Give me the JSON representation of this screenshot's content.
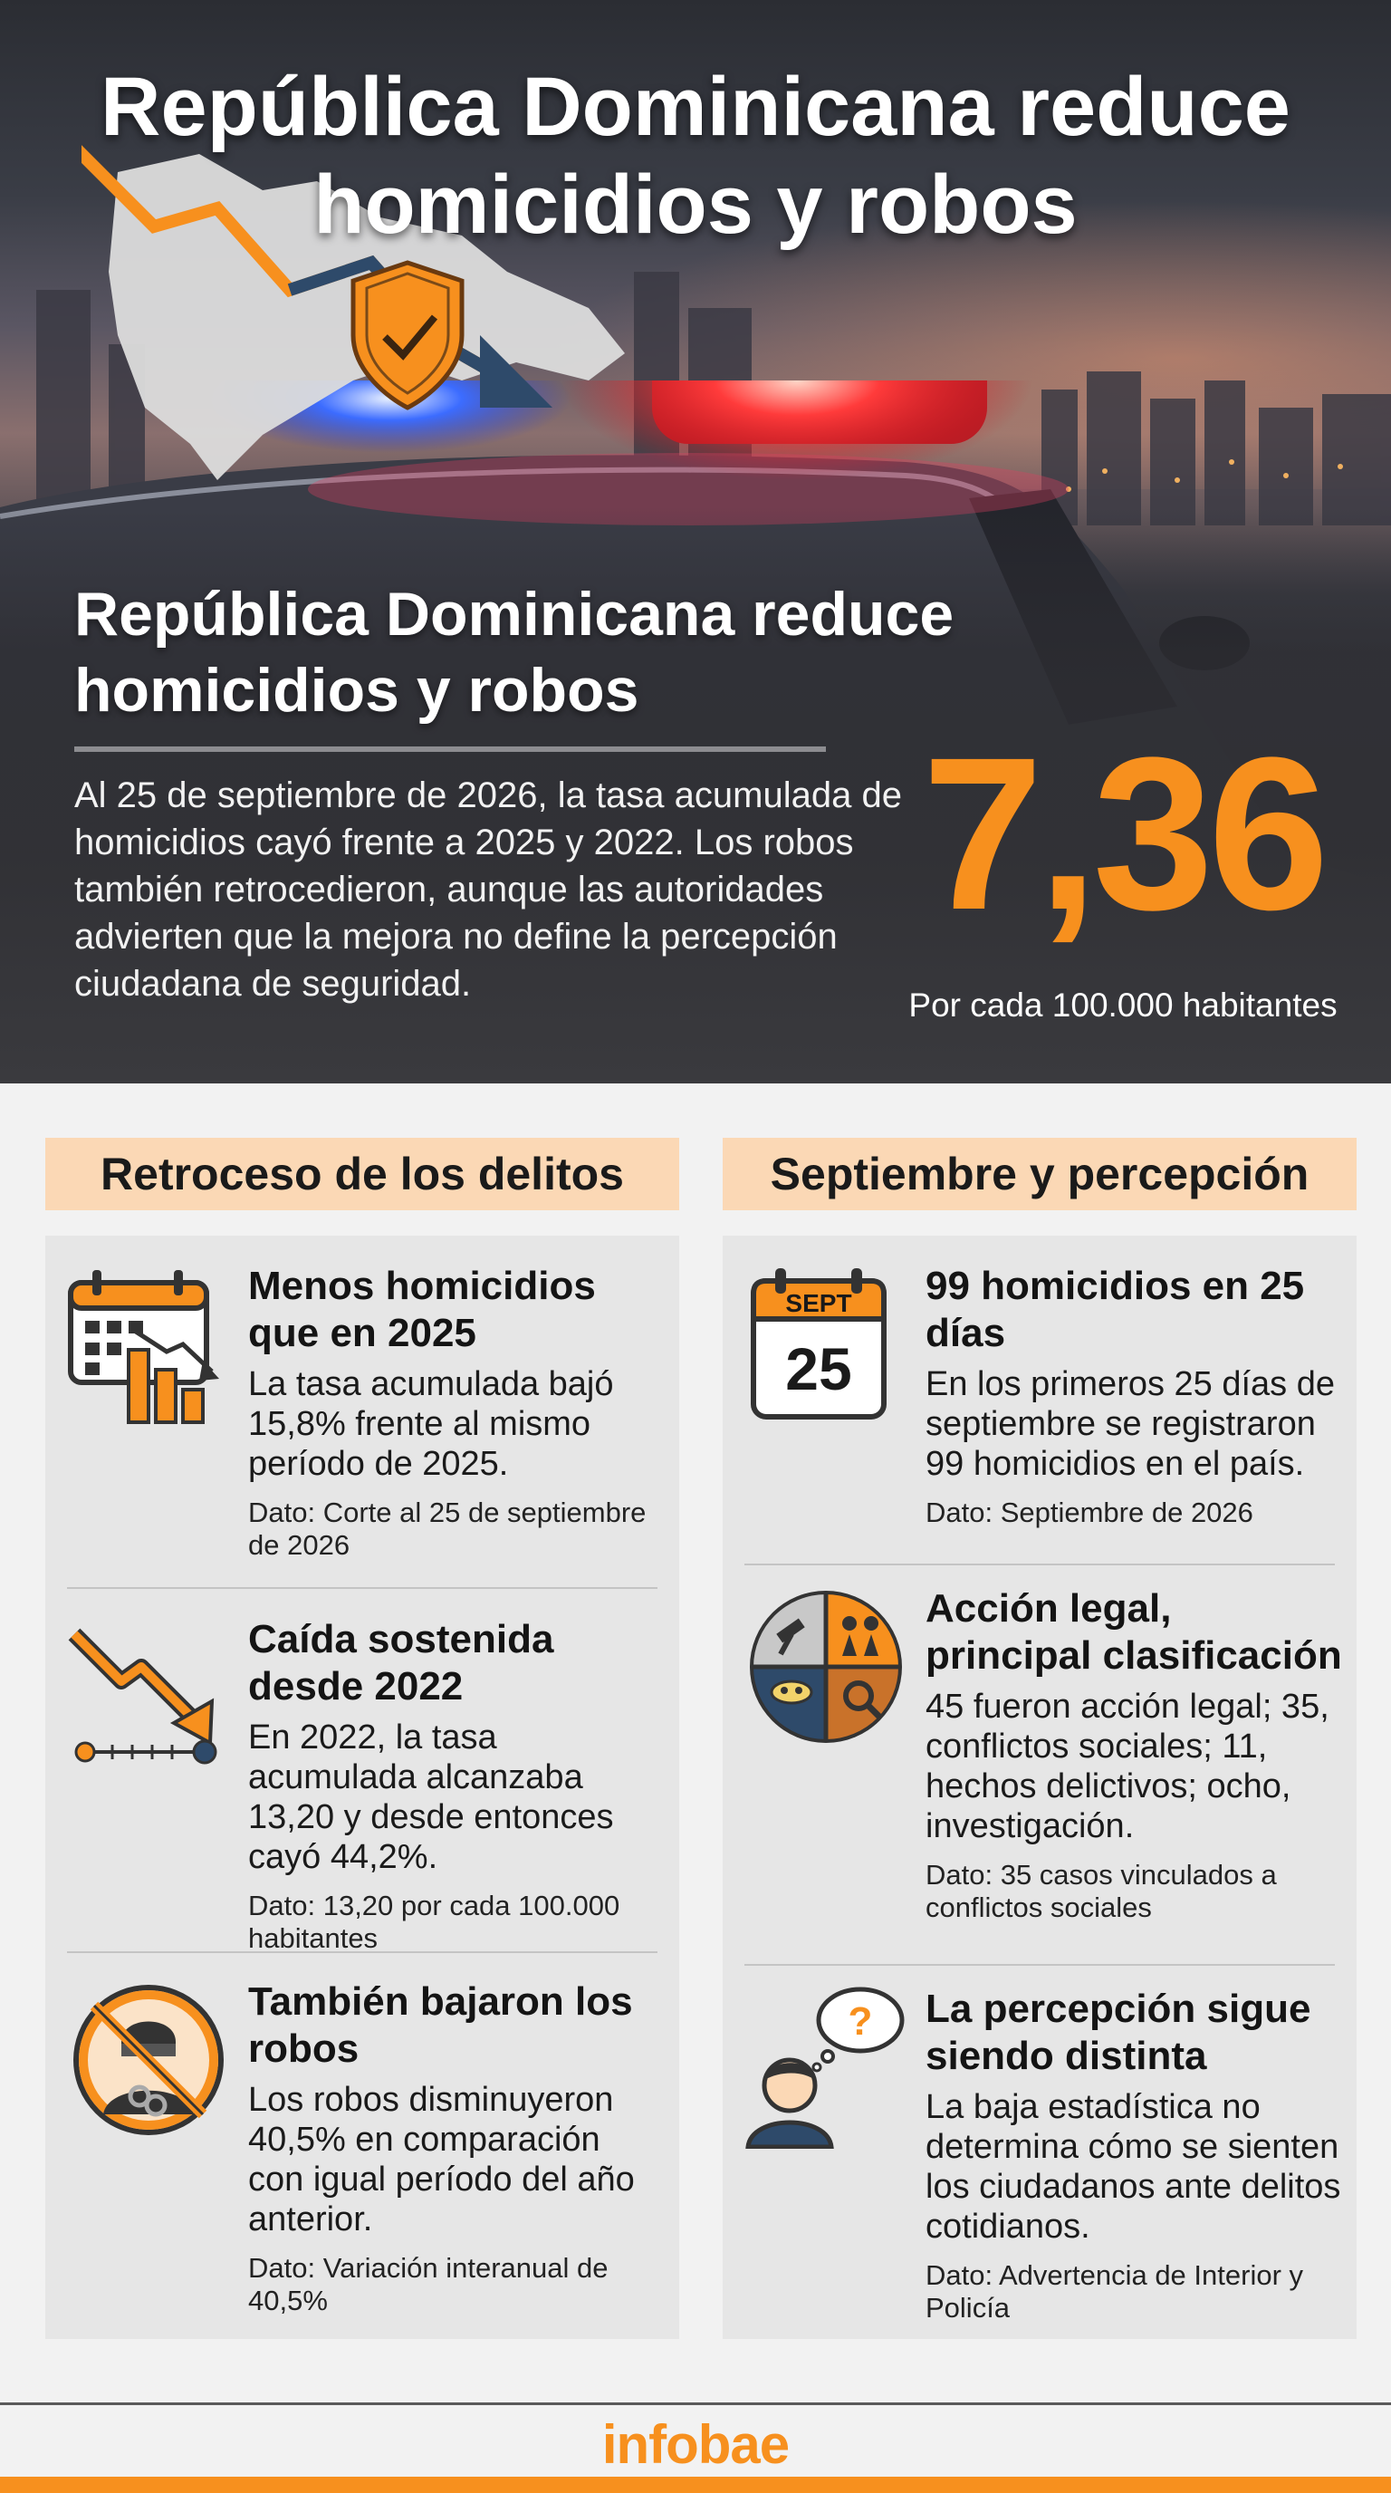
{
  "colors": {
    "accent": "#f7901e",
    "header_bg": "#fbd8b5",
    "card_bg": "#e6e6e6"
  },
  "hero": {
    "title": "República Dominicana reduce homicidios y robos",
    "subtitle": "República Dominicana reduce homicidios y robos",
    "lead": "Al 25 de septiembre de 2026, la tasa acumulada de homicidios cayó frente a 2025 y 2022. Los robos también retrocedieron, aunque las autoridades advierten que la mejora no define la percepción ciudadana de seguridad.",
    "big_number": "7,36",
    "big_caption": "Por cada 100.000 habitantes"
  },
  "left": {
    "header": "Retroceso de los delitos",
    "items": [
      {
        "icon": "calendar-bar-chart-icon",
        "title": "Menos homicidios que en 2025",
        "desc": "La tasa acumulada bajó 15,8% frente al mismo período de 2025.",
        "note": "Dato: Corte al 25 de septiembre de 2026"
      },
      {
        "icon": "downtrend-timeline-icon",
        "title": "Caída sostenida desde 2022",
        "desc": "En 2022, la tasa acumulada alcanzaba 13,20 y desde entonces cayó 44,2%.",
        "note": "Dato: 13,20 por cada 100.000 habitantes"
      },
      {
        "icon": "no-robbery-icon",
        "title": "También bajaron los robos",
        "desc": "Los robos disminuyeron 40,5% en comparación con igual período del año anterior.",
        "note": "Dato: Variación interanual de 40,5%"
      }
    ]
  },
  "right": {
    "header": "Septiembre y percepción",
    "items": [
      {
        "icon": "calendar-day-icon",
        "icon_month": "SEPT",
        "icon_day": "25",
        "title": "99 homicidios en 25 días",
        "desc": "En los primeros 25 días de septiembre se registraron 99 homicidios en el país.",
        "note": "Dato: Septiembre de 2026"
      },
      {
        "icon": "classification-pie-icon",
        "title": "Acción legal, principal clasificación",
        "desc": "45 fueron acción legal; 35, conflictos sociales; 11, hechos delictivos; ocho, investigación.",
        "note": "Dato: 35 casos vinculados a conflictos sociales"
      },
      {
        "icon": "person-question-icon",
        "title": "La percepción sigue siendo distinta",
        "desc": "La baja estadística no determina cómo se sienten los ciudadanos ante delitos cotidianos.",
        "note": "Dato: Advertencia de Interior y Policía"
      }
    ]
  },
  "footer": {
    "brand": "infobae"
  }
}
